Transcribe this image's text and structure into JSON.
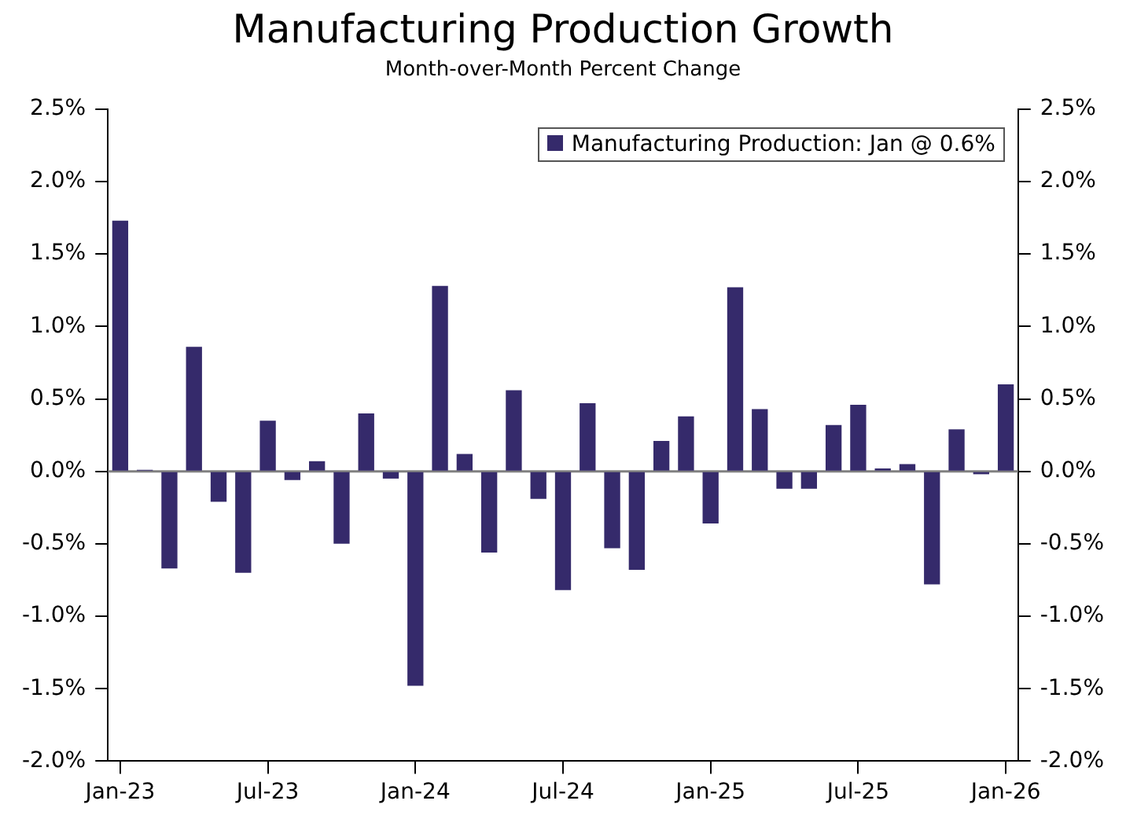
{
  "chart_data": {
    "type": "bar",
    "title": "Manufacturing Production Growth",
    "subtitle": "Month-over-Month Percent Change",
    "categories": [
      "Jan-23",
      null,
      null,
      null,
      null,
      null,
      "Jul-23",
      null,
      null,
      null,
      null,
      null,
      "Jan-24",
      null,
      null,
      null,
      null,
      null,
      "Jul-24",
      null,
      null,
      null,
      null,
      null,
      "Jan-25",
      null,
      null,
      null,
      null,
      null,
      "Jul-25",
      null,
      null,
      null,
      null,
      null,
      "Jan-26"
    ],
    "series": [
      {
        "name": "Manufacturing Production: Jan @ 0.6%",
        "color": "#352a6b",
        "values": [
          1.73,
          0.01,
          -0.67,
          0.86,
          -0.21,
          -0.7,
          0.35,
          -0.06,
          0.07,
          -0.5,
          0.4,
          -0.05,
          -1.48,
          1.28,
          0.12,
          -0.56,
          0.56,
          -0.19,
          -0.82,
          0.47,
          -0.53,
          -0.68,
          0.21,
          0.38,
          -0.36,
          1.27,
          0.43,
          -0.12,
          -0.12,
          0.32,
          0.46,
          0.02,
          0.05,
          -0.78,
          0.29,
          -0.02,
          0.6
        ]
      }
    ],
    "ylim": [
      -2.0,
      2.5
    ],
    "yticks": [
      {
        "value": -2.0,
        "label": "-2.0%"
      },
      {
        "value": -1.5,
        "label": "-1.5%"
      },
      {
        "value": -1.0,
        "label": "-1.0%"
      },
      {
        "value": -0.5,
        "label": "-0.5%"
      },
      {
        "value": 0,
        "label": "0.0%"
      },
      {
        "value": 0.5,
        "label": "0.5%"
      },
      {
        "value": 1.0,
        "label": "1.0%"
      },
      {
        "value": 1.5,
        "label": "1.5%"
      },
      {
        "value": 2.0,
        "label": "2.0%"
      },
      {
        "value": 2.5,
        "label": "2.5%"
      }
    ],
    "y2lim": [
      -2.0,
      2.5
    ],
    "y2ticks": [
      {
        "value": -2.0,
        "label": "-2.0%"
      },
      {
        "value": -1.5,
        "label": "-1.5%"
      },
      {
        "value": -1.0,
        "label": "-1.0%"
      },
      {
        "value": -0.5,
        "label": "-0.5%"
      },
      {
        "value": 0,
        "label": "0.0%"
      },
      {
        "value": 0.5,
        "label": "0.5%"
      },
      {
        "value": 1.0,
        "label": "1.0%"
      },
      {
        "value": 1.5,
        "label": "1.5%"
      },
      {
        "value": 2.0,
        "label": "2.0%"
      },
      {
        "value": 2.5,
        "label": "2.5%"
      }
    ],
    "ref_lines": [
      {
        "axis": "y",
        "value": 0,
        "color": "#808080"
      }
    ],
    "grid": false,
    "legend": "top right"
  }
}
